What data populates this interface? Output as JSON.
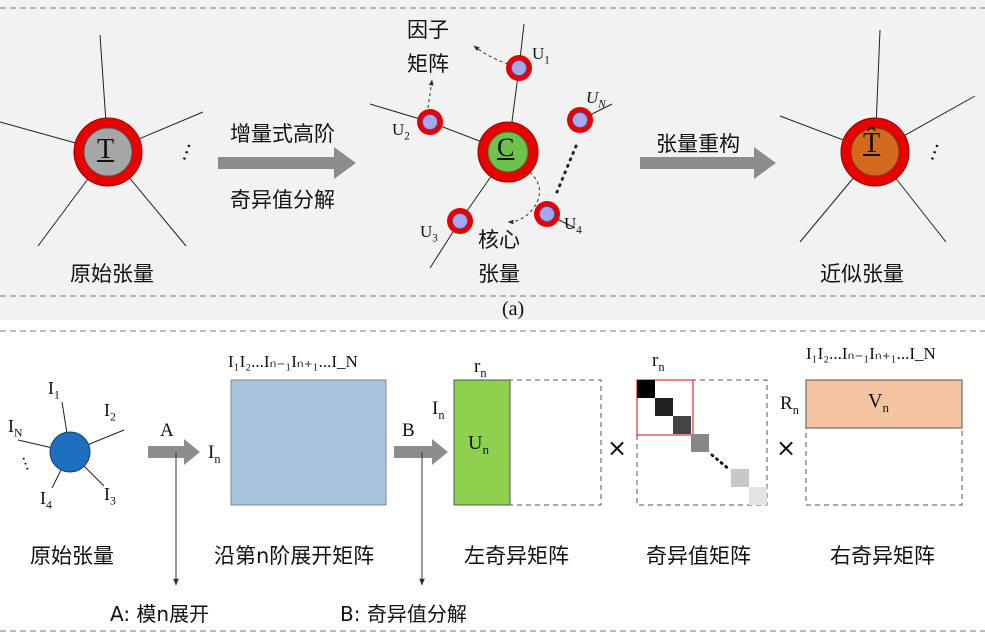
{
  "panel_a": {
    "original_tensor": {
      "symbol": "T",
      "label": "原始张量"
    },
    "step1_line1": "增量式高阶",
    "step1_line2": "奇异值分解",
    "factor_label_line1": "因子",
    "factor_label_line2": "矩阵",
    "core": {
      "symbol": "C",
      "label_line1": "核心",
      "label_line2": "张量"
    },
    "factors": [
      {
        "name": "U",
        "sub": "1"
      },
      {
        "name": "U",
        "sub": "2"
      },
      {
        "name": "U",
        "sub": "3"
      },
      {
        "name": "U",
        "sub": "4"
      },
      {
        "name": "U",
        "sub": "N"
      }
    ],
    "step2": "张量重构",
    "approx_tensor": {
      "symbol": "T̂",
      "label": "近似张量"
    },
    "caption": "(a)"
  },
  "panel_b": {
    "node_labels": [
      {
        "name": "I",
        "sub": "1"
      },
      {
        "name": "I",
        "sub": "2"
      },
      {
        "name": "I",
        "sub": "N"
      },
      {
        "name": "I",
        "sub": "4"
      },
      {
        "name": "I",
        "sub": "3"
      }
    ],
    "original_label": "原始张量",
    "arrow_a": "A",
    "arrow_b": "B",
    "in_label": "I",
    "in_sub": "n",
    "rn_label": "r",
    "rn_sub": "n",
    "Rn_label": "R",
    "Rn_sub": "n",
    "matrix_top_label": "I₁I₂...Iₙ₋₁Iₙ₊₁...I_N",
    "unfold_label": "沿第n阶展开矩阵",
    "un_label": "U",
    "un_sub": "n",
    "left_label": "左奇异矩阵",
    "times": "×",
    "sv_label": "奇异值矩阵",
    "vn_label": "V",
    "vn_sub": "n",
    "right_label": "右奇异矩阵",
    "legend_a": "A: 模n展开",
    "legend_b": "B: 奇异值分解"
  },
  "colors": {
    "ring": "#e60000",
    "core_green": "#6cc24a",
    "orange": "#d2691e",
    "factor_fill": "#a8a8e8",
    "blue_matrix": "#a7c3dd",
    "green_matrix": "#8fd14f",
    "peach_matrix": "#f5c4a0",
    "tensor_blue": "#1f6fc0",
    "arrow_gray": "#8c8c8c"
  }
}
